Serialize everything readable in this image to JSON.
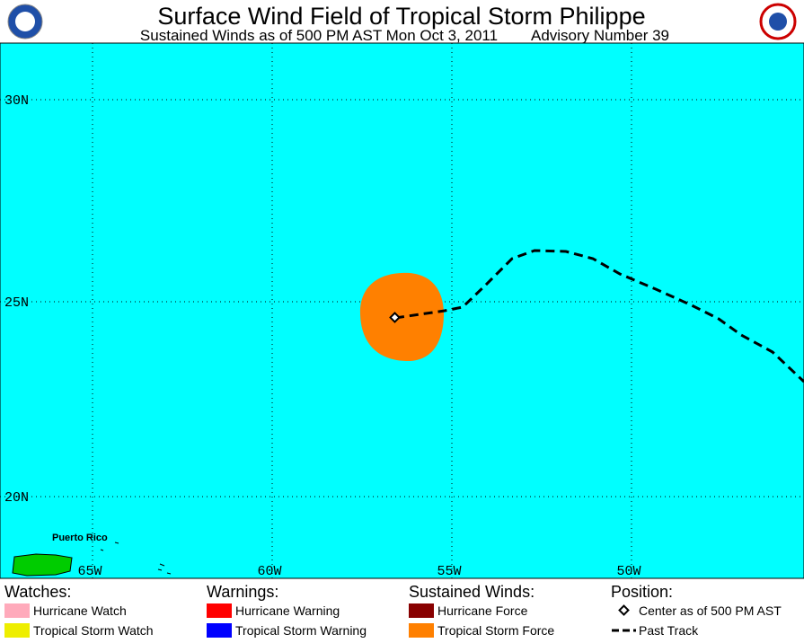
{
  "header": {
    "title": "Surface Wind Field of Tropical Storm Philippe",
    "subtitle": "Sustained Winds as of 500 PM AST Mon Oct 3, 2011",
    "advisory": "Advisory Number 39"
  },
  "map": {
    "lat_labels": [
      "30N",
      "25N",
      "20N"
    ],
    "lon_labels": [
      "65W",
      "60W",
      "55W",
      "50W"
    ],
    "place": "Puerto Rico"
  },
  "legend": {
    "watches": {
      "title": "Watches:",
      "items": [
        "Hurricane Watch",
        "Tropical Storm Watch"
      ]
    },
    "warnings": {
      "title": "Warnings:",
      "items": [
        "Hurricane Warning",
        "Tropical Storm Warning"
      ]
    },
    "winds": {
      "title": "Sustained Winds:",
      "items": [
        "Hurricane Force",
        "Tropical Storm Force"
      ]
    },
    "position": {
      "title": "Position:",
      "items": [
        "Center as of 500 PM AST",
        "Past Track"
      ]
    }
  }
}
